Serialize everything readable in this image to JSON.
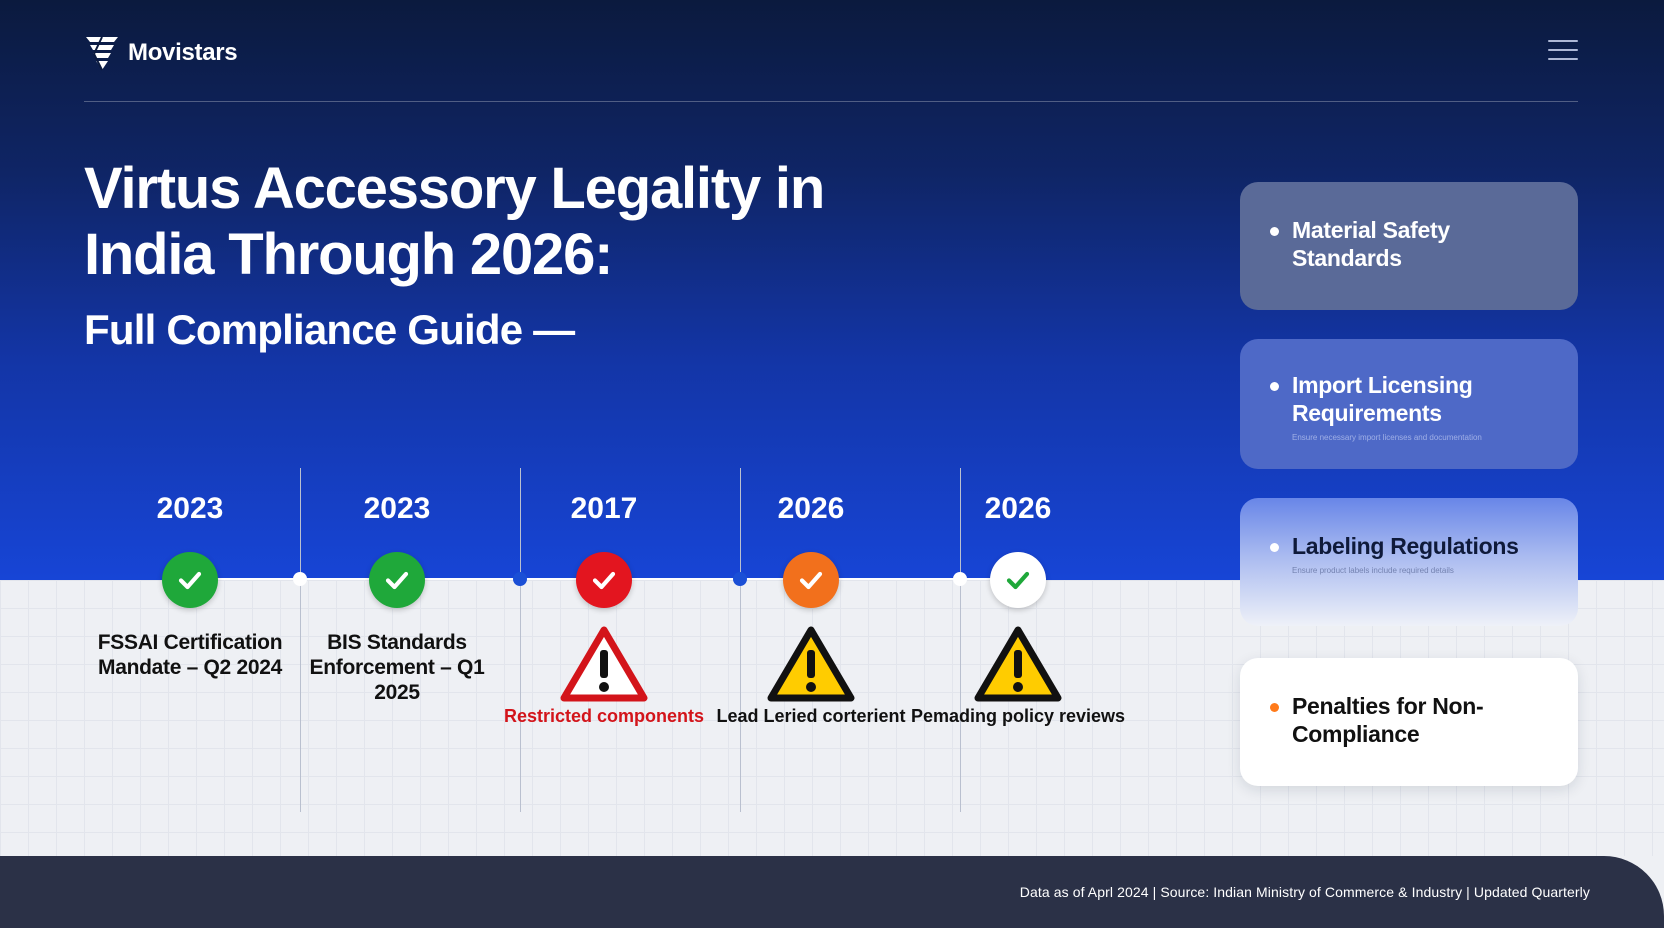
{
  "header": {
    "brand": "Movistars",
    "menu_icon": "hamburger-menu-icon"
  },
  "hero": {
    "title": "Virtus Accessory Legality in India Through 2026:",
    "subtitle": "Full Compliance Guide —"
  },
  "timeline": {
    "items": [
      {
        "year": "2023",
        "status": "check",
        "status_color": "#1fa83a",
        "label": "FSSAI Certification Mandate – Q2 2024",
        "warning": null,
        "note": ""
      },
      {
        "year": "2023",
        "status": "check",
        "status_color": "#1fa83a",
        "label": "BIS Standards Enforcement – Q1 2025",
        "warning": null,
        "note": ""
      },
      {
        "year": "2017",
        "status": "check",
        "status_color": "#e3151f",
        "label": "",
        "warning": "red-warning-icon",
        "note": "Restricted components"
      },
      {
        "year": "2026",
        "status": "check",
        "status_color": "#f2701c",
        "label": "",
        "warning": "yellow-warning-icon",
        "note": "Lead Leried corterient"
      },
      {
        "year": "2026",
        "status": "check",
        "status_color": "#ffffff",
        "label": "",
        "warning": "yellow-warning-icon",
        "note": "Pemading policy reviews"
      }
    ],
    "dot_colors": [
      "#ffffff",
      "#1a4fd6",
      "#1a4fd6",
      "#ffffff"
    ]
  },
  "cards": [
    {
      "title": "Material Safety Standards",
      "sub": ""
    },
    {
      "title": "Import Licensing Requirements",
      "sub": "Ensure necessary import licenses and documentation"
    },
    {
      "title": "Labeling Regulations",
      "sub": "Ensure product labels include required details"
    },
    {
      "title": "Penalties for Non-Compliance",
      "sub": ""
    }
  ],
  "footer": {
    "text": "Data as of Aprl 2024 | Source: Indian Ministry of Commerce & Industry | Updated Quarterly"
  },
  "colors": {
    "hero_top": "#0b1a3e",
    "hero_bottom": "#1745d6",
    "footer_bg": "#2b3147",
    "accent_orange": "#ff7a1a"
  }
}
